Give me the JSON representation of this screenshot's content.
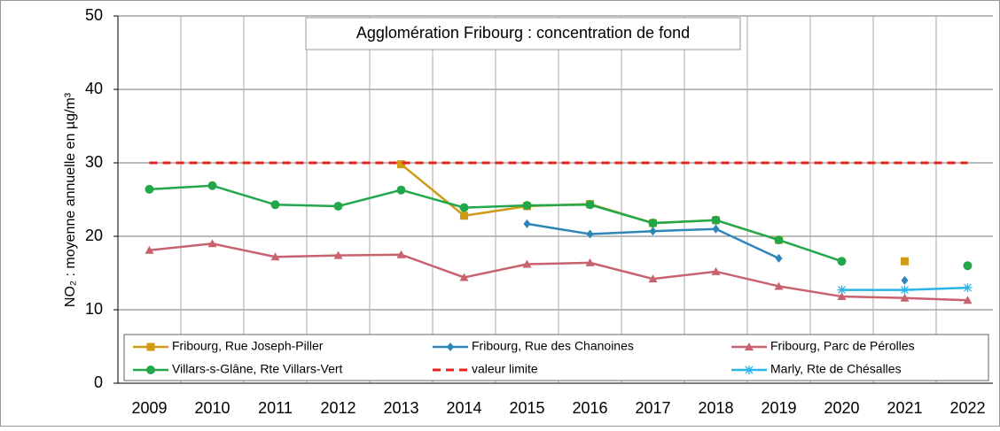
{
  "chart_data": {
    "type": "line",
    "title": "Agglomération Fribourg : concentration de fond",
    "ylabel": "NO₂ : moyenne annuelle en µg/m³",
    "categories": [
      "2009",
      "2010",
      "2011",
      "2012",
      "2013",
      "2014",
      "2015",
      "2016",
      "2017",
      "2018",
      "2019",
      "2020",
      "2021",
      "2022"
    ],
    "ylim": [
      0,
      50
    ],
    "yticks": [
      0,
      10,
      20,
      30,
      40,
      50
    ],
    "grid": true,
    "series": [
      {
        "name": "Fribourg, Rue Joseph-Piller",
        "color": "#d09a17",
        "marker": "square",
        "values": [
          null,
          null,
          null,
          null,
          29.8,
          22.8,
          24.1,
          24.4,
          21.8,
          22.2,
          19.5,
          null,
          16.6,
          null
        ]
      },
      {
        "name": "Fribourg, Rue des Chanoines",
        "color": "#2e86b8",
        "marker": "diamond",
        "values": [
          null,
          null,
          null,
          null,
          null,
          null,
          21.7,
          20.3,
          20.7,
          21.0,
          17.0,
          null,
          14.0,
          null
        ]
      },
      {
        "name": "Fribourg, Parc de Pérolles",
        "color": "#c9626f",
        "marker": "triangle",
        "values": [
          18.1,
          19.0,
          17.2,
          17.4,
          17.5,
          14.4,
          16.2,
          16.4,
          14.2,
          15.2,
          13.2,
          11.8,
          11.6,
          11.3
        ]
      },
      {
        "name": "Villars-s-Glâne, Rte Villars-Vert",
        "color": "#22a84a",
        "marker": "circle",
        "values": [
          26.4,
          26.9,
          24.3,
          24.1,
          26.3,
          23.9,
          24.2,
          24.3,
          21.8,
          22.2,
          19.5,
          16.6,
          null,
          16.0
        ]
      },
      {
        "name": "valeur limite",
        "color": "#e8221c",
        "marker": "none",
        "dash": true,
        "values": [
          30,
          30,
          30,
          30,
          30,
          30,
          30,
          30,
          30,
          30,
          30,
          30,
          30,
          30
        ]
      },
      {
        "name": "Marly, Rte de Chésalles",
        "color": "#2ab4e8",
        "marker": "asterisk",
        "values": [
          null,
          null,
          null,
          null,
          null,
          null,
          null,
          null,
          null,
          null,
          null,
          12.7,
          12.7,
          13.0
        ]
      }
    ]
  }
}
